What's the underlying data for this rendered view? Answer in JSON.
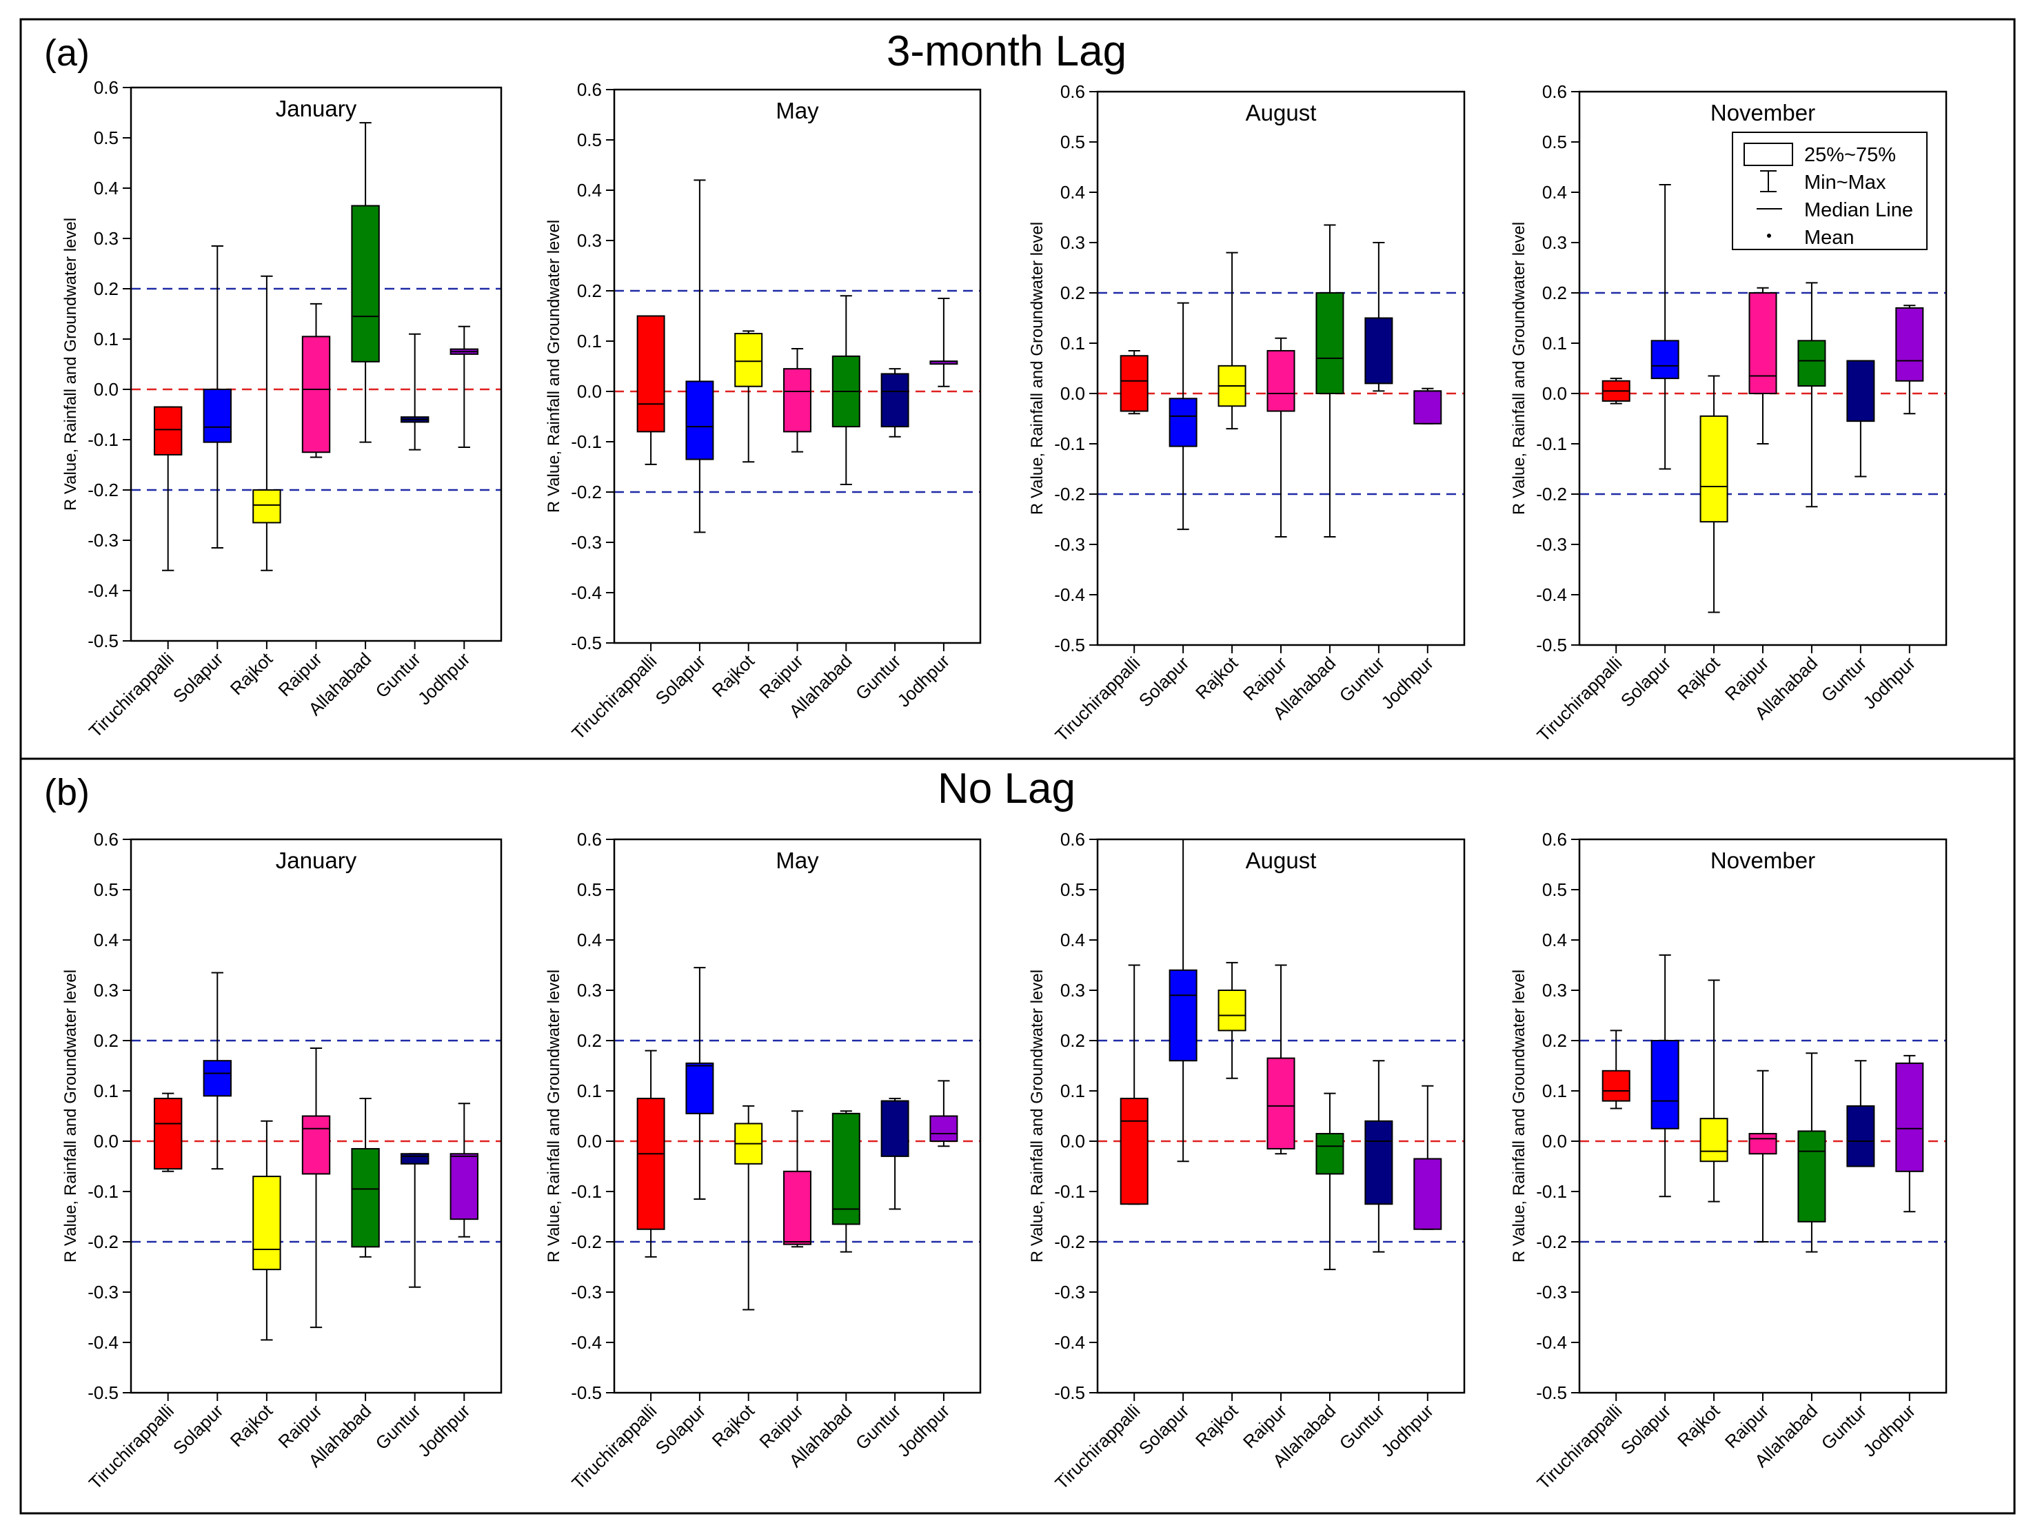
{
  "figure": {
    "panel_a": {
      "label": "(a)",
      "title": "3-month Lag"
    },
    "panel_b": {
      "label": "(b)",
      "title": "No Lag"
    }
  },
  "legend": {
    "box": "25%~75%",
    "whisker": "Min~Max",
    "median": "Median Line",
    "mean": "Mean"
  },
  "chart_data": [
    {
      "type": "box",
      "panel": "3-month Lag",
      "title": "January",
      "ylabel": "R Value, Rainfall and Groundwater level",
      "ylim": [
        -0.5,
        0.6
      ],
      "yticks": [
        -0.5,
        -0.4,
        -0.3,
        -0.2,
        -0.1,
        0.0,
        0.1,
        0.2,
        0.3,
        0.4,
        0.5,
        0.6
      ],
      "reference_lines": [
        {
          "y": 0.2,
          "color": "#1f2aa6"
        },
        {
          "y": 0.0,
          "color": "#e02020"
        },
        {
          "y": -0.2,
          "color": "#1f2aa6"
        }
      ],
      "categories": [
        "Tiruchirappalli",
        "Solapur",
        "Rajkot",
        "Raipur",
        "Allahabad",
        "Guntur",
        "Jodhpur"
      ],
      "colors": [
        "#ff0000",
        "#0000ff",
        "#ffff00",
        "#ff1493",
        "#008000",
        "#000080",
        "#9400d3"
      ],
      "boxes": [
        {
          "min": -0.36,
          "q1": -0.13,
          "median": -0.08,
          "q3": -0.035,
          "max": -0.035
        },
        {
          "min": -0.315,
          "q1": -0.105,
          "median": -0.075,
          "q3": 0.0,
          "max": 0.285
        },
        {
          "min": -0.36,
          "q1": -0.265,
          "median": -0.23,
          "q3": -0.2,
          "max": 0.225
        },
        {
          "min": -0.135,
          "q1": -0.125,
          "median": 0.0,
          "q3": 0.105,
          "max": 0.17
        },
        {
          "min": -0.105,
          "q1": 0.055,
          "median": 0.145,
          "q3": 0.365,
          "max": 0.53
        },
        {
          "min": -0.12,
          "q1": -0.065,
          "median": -0.06,
          "q3": -0.055,
          "max": 0.11
        },
        {
          "min": -0.115,
          "q1": 0.07,
          "median": 0.075,
          "q3": 0.08,
          "max": 0.125
        }
      ]
    },
    {
      "type": "box",
      "panel": "3-month Lag",
      "title": "May",
      "ylabel": "R Value, Rainfall and Groundwater level",
      "ylim": [
        -0.5,
        0.6
      ],
      "yticks": [
        -0.5,
        -0.4,
        -0.3,
        -0.2,
        -0.1,
        0.0,
        0.1,
        0.2,
        0.3,
        0.4,
        0.5,
        0.6
      ],
      "reference_lines": [
        {
          "y": 0.2,
          "color": "#1f2aa6"
        },
        {
          "y": 0.0,
          "color": "#e02020"
        },
        {
          "y": -0.2,
          "color": "#1f2aa6"
        }
      ],
      "categories": [
        "Tiruchirappalli",
        "Solapur",
        "Rajkot",
        "Raipur",
        "Allahabad",
        "Guntur",
        "Jodhpur"
      ],
      "colors": [
        "#ff0000",
        "#0000ff",
        "#ffff00",
        "#ff1493",
        "#008000",
        "#000080",
        "#9400d3"
      ],
      "boxes": [
        {
          "min": -0.145,
          "q1": -0.08,
          "median": -0.025,
          "q3": 0.15,
          "max": 0.15
        },
        {
          "min": -0.28,
          "q1": -0.135,
          "median": -0.07,
          "q3": 0.02,
          "max": 0.42
        },
        {
          "min": -0.14,
          "q1": 0.01,
          "median": 0.06,
          "q3": 0.115,
          "max": 0.12
        },
        {
          "min": -0.12,
          "q1": -0.08,
          "median": 0.0,
          "q3": 0.045,
          "max": 0.085
        },
        {
          "min": -0.185,
          "q1": -0.07,
          "median": 0.0,
          "q3": 0.07,
          "max": 0.19
        },
        {
          "min": -0.09,
          "q1": -0.07,
          "median": 0.0,
          "q3": 0.035,
          "max": 0.045
        },
        {
          "min": 0.01,
          "q1": 0.06,
          "median": 0.06,
          "q3": 0.06,
          "max": 0.185
        }
      ]
    },
    {
      "type": "box",
      "panel": "3-month Lag",
      "title": "August",
      "ylabel": "R Value, Rainfall and Groundwater level",
      "ylim": [
        -0.5,
        0.6
      ],
      "yticks": [
        -0.5,
        -0.4,
        -0.3,
        -0.2,
        -0.1,
        0.0,
        0.1,
        0.2,
        0.3,
        0.4,
        0.5,
        0.6
      ],
      "reference_lines": [
        {
          "y": 0.2,
          "color": "#1f2aa6"
        },
        {
          "y": 0.0,
          "color": "#e02020"
        },
        {
          "y": -0.2,
          "color": "#1f2aa6"
        }
      ],
      "categories": [
        "Tiruchirappalli",
        "Solapur",
        "Rajkot",
        "Raipur",
        "Allahabad",
        "Guntur",
        "Jodhpur"
      ],
      "colors": [
        "#ff0000",
        "#0000ff",
        "#ffff00",
        "#ff1493",
        "#008000",
        "#000080",
        "#9400d3"
      ],
      "boxes": [
        {
          "min": -0.04,
          "q1": -0.035,
          "median": 0.025,
          "q3": 0.075,
          "max": 0.085
        },
        {
          "min": -0.27,
          "q1": -0.105,
          "median": -0.045,
          "q3": -0.01,
          "max": 0.18
        },
        {
          "min": -0.07,
          "q1": -0.025,
          "median": 0.015,
          "q3": 0.055,
          "max": 0.28
        },
        {
          "min": -0.285,
          "q1": -0.035,
          "median": 0.0,
          "q3": 0.085,
          "max": 0.11
        },
        {
          "min": -0.285,
          "q1": 0.0,
          "median": 0.07,
          "q3": 0.2,
          "max": 0.335
        },
        {
          "min": 0.005,
          "q1": 0.02,
          "median": 0.15,
          "q3": 0.15,
          "max": 0.3
        },
        {
          "min": -0.06,
          "q1": -0.06,
          "median": 0.005,
          "q3": 0.005,
          "max": 0.01
        }
      ]
    },
    {
      "type": "box",
      "panel": "3-month Lag",
      "title": "November",
      "ylabel": "R Value, Rainfall and Groundwater level",
      "ylim": [
        -0.5,
        0.6
      ],
      "yticks": [
        -0.5,
        -0.4,
        -0.3,
        -0.2,
        -0.1,
        0.0,
        0.1,
        0.2,
        0.3,
        0.4,
        0.5,
        0.6
      ],
      "reference_lines": [
        {
          "y": 0.2,
          "color": "#1f2aa6"
        },
        {
          "y": 0.0,
          "color": "#e02020"
        },
        {
          "y": -0.2,
          "color": "#1f2aa6"
        }
      ],
      "categories": [
        "Tiruchirappalli",
        "Solapur",
        "Rajkot",
        "Raipur",
        "Allahabad",
        "Guntur",
        "Jodhpur"
      ],
      "colors": [
        "#ff0000",
        "#0000ff",
        "#ffff00",
        "#ff1493",
        "#008000",
        "#000080",
        "#9400d3"
      ],
      "boxes": [
        {
          "min": -0.02,
          "q1": -0.015,
          "median": 0.005,
          "q3": 0.025,
          "max": 0.03
        },
        {
          "min": -0.15,
          "q1": 0.03,
          "median": 0.055,
          "q3": 0.105,
          "max": 0.415
        },
        {
          "min": -0.435,
          "q1": -0.255,
          "median": -0.185,
          "q3": -0.045,
          "max": 0.035
        },
        {
          "min": -0.1,
          "q1": 0.0,
          "median": 0.035,
          "q3": 0.2,
          "max": 0.21
        },
        {
          "min": -0.225,
          "q1": 0.015,
          "median": 0.065,
          "q3": 0.105,
          "max": 0.22
        },
        {
          "min": -0.165,
          "q1": -0.055,
          "median": 0.065,
          "q3": 0.065,
          "max": 0.065
        },
        {
          "min": -0.04,
          "q1": 0.025,
          "median": 0.065,
          "q3": 0.17,
          "max": 0.175
        }
      ]
    },
    {
      "type": "box",
      "panel": "No Lag",
      "title": "January",
      "ylabel": "R Value, Rainfall and Groundwater level",
      "ylim": [
        -0.5,
        0.6
      ],
      "yticks": [
        -0.5,
        -0.4,
        -0.3,
        -0.2,
        -0.1,
        0.0,
        0.1,
        0.2,
        0.3,
        0.4,
        0.5,
        0.6
      ],
      "reference_lines": [
        {
          "y": 0.2,
          "color": "#1f2aa6"
        },
        {
          "y": 0.0,
          "color": "#e02020"
        },
        {
          "y": -0.2,
          "color": "#1f2aa6"
        }
      ],
      "categories": [
        "Tiruchirappalli",
        "Solapur",
        "Rajkot",
        "Raipur",
        "Allahabad",
        "Guntur",
        "Jodhpur"
      ],
      "colors": [
        "#ff0000",
        "#0000ff",
        "#ffff00",
        "#ff1493",
        "#008000",
        "#000080",
        "#9400d3"
      ],
      "boxes": [
        {
          "min": -0.06,
          "q1": -0.055,
          "median": 0.035,
          "q3": 0.085,
          "max": 0.095
        },
        {
          "min": -0.055,
          "q1": 0.09,
          "median": 0.135,
          "q3": 0.16,
          "max": 0.335
        },
        {
          "min": -0.395,
          "q1": -0.255,
          "median": -0.215,
          "q3": -0.07,
          "max": 0.04
        },
        {
          "min": -0.37,
          "q1": -0.065,
          "median": 0.025,
          "q3": 0.05,
          "max": 0.185
        },
        {
          "min": -0.23,
          "q1": -0.21,
          "median": -0.095,
          "q3": -0.015,
          "max": 0.085
        },
        {
          "min": -0.29,
          "q1": -0.045,
          "median": -0.03,
          "q3": -0.025,
          "max": -0.025
        },
        {
          "min": -0.19,
          "q1": -0.155,
          "median": -0.03,
          "q3": -0.025,
          "max": 0.075
        }
      ]
    },
    {
      "type": "box",
      "panel": "No Lag",
      "title": "May",
      "ylabel": "R Value, Rainfall and Groundwater level",
      "ylim": [
        -0.5,
        0.6
      ],
      "yticks": [
        -0.5,
        -0.4,
        -0.3,
        -0.2,
        -0.1,
        0.0,
        0.1,
        0.2,
        0.3,
        0.4,
        0.5,
        0.6
      ],
      "reference_lines": [
        {
          "y": 0.2,
          "color": "#1f2aa6"
        },
        {
          "y": 0.0,
          "color": "#e02020"
        },
        {
          "y": -0.2,
          "color": "#1f2aa6"
        }
      ],
      "categories": [
        "Tiruchirappalli",
        "Solapur",
        "Rajkot",
        "Raipur",
        "Allahabad",
        "Guntur",
        "Jodhpur"
      ],
      "colors": [
        "#ff0000",
        "#0000ff",
        "#ffff00",
        "#ff1493",
        "#008000",
        "#000080",
        "#9400d3"
      ],
      "boxes": [
        {
          "min": -0.23,
          "q1": -0.175,
          "median": -0.025,
          "q3": 0.085,
          "max": 0.18
        },
        {
          "min": -0.115,
          "q1": 0.055,
          "median": 0.15,
          "q3": 0.155,
          "max": 0.345
        },
        {
          "min": -0.335,
          "q1": -0.045,
          "median": -0.005,
          "q3": 0.035,
          "max": 0.07
        },
        {
          "min": -0.21,
          "q1": -0.205,
          "median": -0.2,
          "q3": -0.06,
          "max": 0.06
        },
        {
          "min": -0.22,
          "q1": -0.165,
          "median": -0.135,
          "q3": 0.055,
          "max": 0.06
        },
        {
          "min": -0.135,
          "q1": -0.03,
          "median": 0.08,
          "q3": 0.08,
          "max": 0.085
        },
        {
          "min": -0.01,
          "q1": 0.0,
          "median": 0.015,
          "q3": 0.05,
          "max": 0.12
        }
      ]
    },
    {
      "type": "box",
      "panel": "No Lag",
      "title": "August",
      "ylabel": "R Value, Rainfall and Groundwater level",
      "ylim": [
        -0.5,
        0.6
      ],
      "yticks": [
        -0.5,
        -0.4,
        -0.3,
        -0.2,
        -0.1,
        0.0,
        0.1,
        0.2,
        0.3,
        0.4,
        0.5,
        0.6
      ],
      "reference_lines": [
        {
          "y": 0.2,
          "color": "#1f2aa6"
        },
        {
          "y": 0.0,
          "color": "#e02020"
        },
        {
          "y": -0.2,
          "color": "#1f2aa6"
        }
      ],
      "categories": [
        "Tiruchirappalli",
        "Solapur",
        "Rajkot",
        "Raipur",
        "Allahabad",
        "Guntur",
        "Jodhpur"
      ],
      "colors": [
        "#ff0000",
        "#0000ff",
        "#ffff00",
        "#ff1493",
        "#008000",
        "#000080",
        "#9400d3"
      ],
      "boxes": [
        {
          "min": -0.125,
          "q1": -0.125,
          "median": 0.04,
          "q3": 0.085,
          "max": 0.35
        },
        {
          "min": -0.04,
          "q1": 0.16,
          "median": 0.29,
          "q3": 0.34,
          "max": 0.6
        },
        {
          "min": 0.125,
          "q1": 0.22,
          "median": 0.25,
          "q3": 0.3,
          "max": 0.355
        },
        {
          "min": -0.025,
          "q1": -0.015,
          "median": 0.07,
          "q3": 0.165,
          "max": 0.35
        },
        {
          "min": -0.255,
          "q1": -0.065,
          "median": -0.01,
          "q3": 0.015,
          "max": 0.095
        },
        {
          "min": -0.22,
          "q1": -0.125,
          "median": 0.0,
          "q3": 0.04,
          "max": 0.16
        },
        {
          "min": -0.175,
          "q1": -0.175,
          "median": -0.035,
          "q3": -0.035,
          "max": 0.11
        }
      ]
    },
    {
      "type": "box",
      "panel": "No Lag",
      "title": "November",
      "ylabel": "R Value, Rainfall and Groundwater level",
      "ylim": [
        -0.5,
        0.6
      ],
      "yticks": [
        -0.5,
        -0.4,
        -0.3,
        -0.2,
        -0.1,
        0.0,
        0.1,
        0.2,
        0.3,
        0.4,
        0.5,
        0.6
      ],
      "reference_lines": [
        {
          "y": 0.2,
          "color": "#1f2aa6"
        },
        {
          "y": 0.0,
          "color": "#e02020"
        },
        {
          "y": -0.2,
          "color": "#1f2aa6"
        }
      ],
      "categories": [
        "Tiruchirappalli",
        "Solapur",
        "Rajkot",
        "Raipur",
        "Allahabad",
        "Guntur",
        "Jodhpur"
      ],
      "colors": [
        "#ff0000",
        "#0000ff",
        "#ffff00",
        "#ff1493",
        "#008000",
        "#000080",
        "#9400d3"
      ],
      "boxes": [
        {
          "min": 0.065,
          "q1": 0.08,
          "median": 0.1,
          "q3": 0.14,
          "max": 0.22
        },
        {
          "min": -0.11,
          "q1": 0.025,
          "median": 0.08,
          "q3": 0.2,
          "max": 0.37
        },
        {
          "min": -0.12,
          "q1": -0.04,
          "median": -0.02,
          "q3": 0.045,
          "max": 0.32
        },
        {
          "min": -0.2,
          "q1": -0.025,
          "median": 0.005,
          "q3": 0.015,
          "max": 0.14
        },
        {
          "min": -0.22,
          "q1": -0.16,
          "median": -0.02,
          "q3": 0.02,
          "max": 0.175
        },
        {
          "min": -0.05,
          "q1": -0.05,
          "median": 0.0,
          "q3": 0.07,
          "max": 0.16
        },
        {
          "min": -0.14,
          "q1": -0.06,
          "median": 0.025,
          "q3": 0.155,
          "max": 0.17
        }
      ]
    }
  ]
}
